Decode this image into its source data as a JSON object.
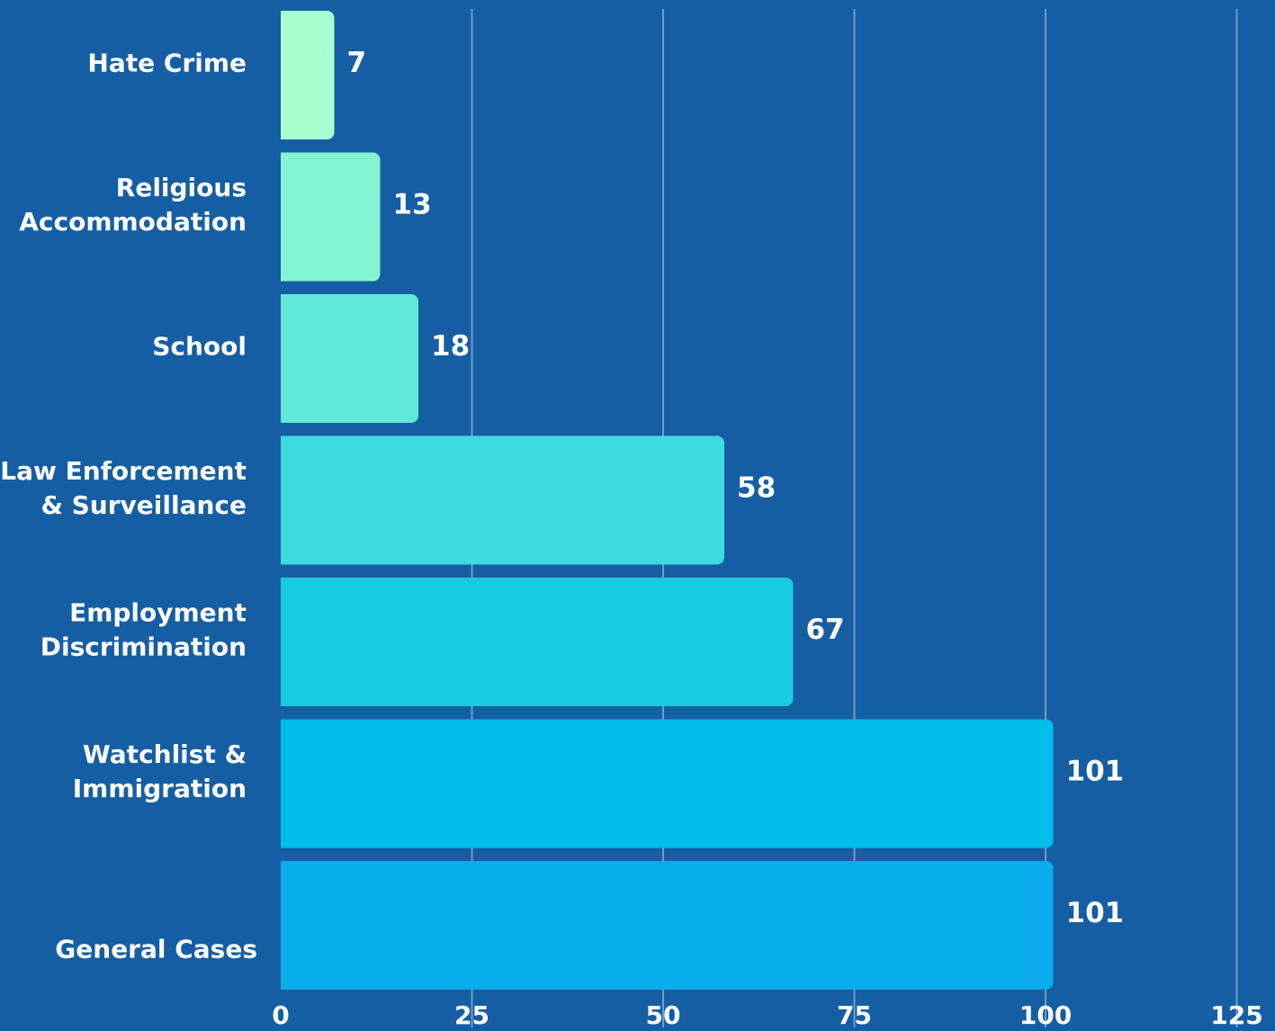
{
  "chart_data": {
    "type": "bar",
    "orientation": "horizontal",
    "categories": [
      [
        "Hate Crime"
      ],
      [
        "Religious",
        "Accommodation"
      ],
      [
        "School"
      ],
      [
        "Law Enforcement",
        "& Surveillance"
      ],
      [
        "Employment",
        "Discrimination"
      ],
      [
        "Watchlist &",
        "Immigration"
      ],
      [
        "General Cases"
      ]
    ],
    "values": [
      7,
      13,
      18,
      58,
      67,
      101,
      101
    ],
    "value_labels": [
      "7",
      "13",
      "18",
      "58",
      "67",
      "101",
      "101"
    ],
    "xlim": [
      0,
      125
    ],
    "xticks": [
      0,
      25,
      50,
      75,
      100,
      125
    ],
    "grid": "vertical",
    "legend": "none",
    "title": "",
    "xlabel": "",
    "ylabel": ""
  },
  "colors": {
    "background": "#155ea3",
    "grid": "#6f9ccb",
    "text": "#ffffff",
    "bars": [
      "#a8ffd0",
      "#85f4d3",
      "#61e8d8",
      "#3ddbe0",
      "#16cbe2",
      "#00bde9",
      "#0aadeb"
    ]
  }
}
